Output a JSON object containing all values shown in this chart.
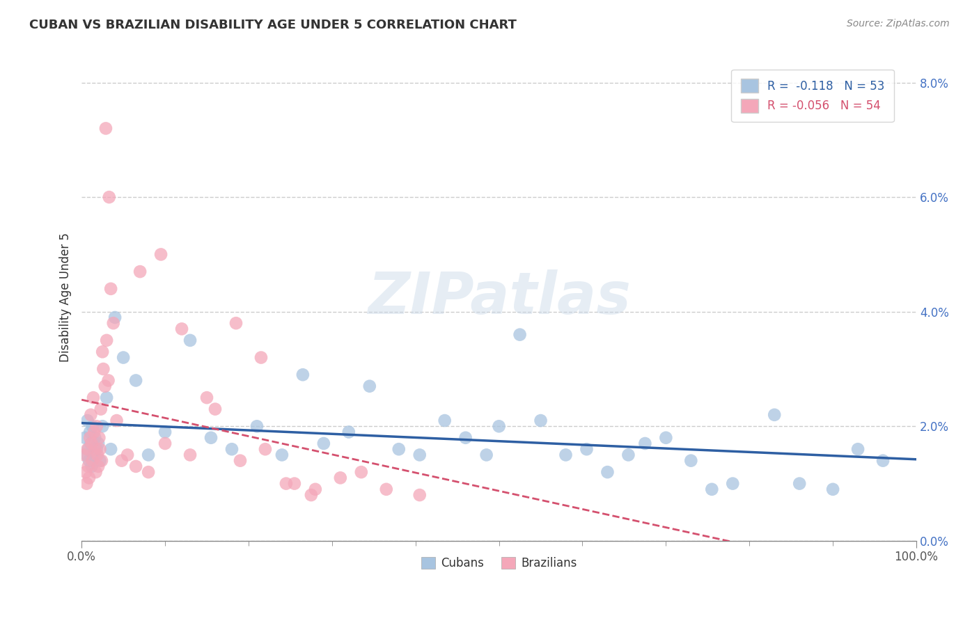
{
  "title": "CUBAN VS BRAZILIAN DISABILITY AGE UNDER 5 CORRELATION CHART",
  "source": "Source: ZipAtlas.com",
  "ylabel": "Disability Age Under 5",
  "xlim": [
    0,
    100
  ],
  "ylim": [
    0,
    8.5
  ],
  "ytick_values": [
    0,
    2,
    4,
    6,
    8
  ],
  "r_cuban": -0.118,
  "n_cuban": 53,
  "r_brazilian": -0.056,
  "n_brazilian": 54,
  "cuban_color": "#a8c4e0",
  "brazilian_color": "#f4a7b9",
  "cuban_line_color": "#2e5fa3",
  "brazilian_line_color": "#d4506e",
  "watermark_text": "ZIPatlas",
  "cubans_x": [
    0.4,
    0.6,
    0.7,
    0.8,
    0.9,
    1.0,
    1.1,
    1.2,
    1.3,
    1.5,
    1.6,
    1.8,
    2.0,
    2.2,
    2.5,
    3.0,
    3.5,
    4.0,
    5.0,
    6.5,
    8.0,
    10.0,
    13.0,
    15.5,
    18.0,
    21.0,
    24.0,
    26.5,
    29.0,
    32.0,
    34.5,
    38.0,
    40.5,
    43.5,
    46.0,
    48.5,
    50.0,
    52.5,
    55.0,
    58.0,
    60.5,
    63.0,
    65.5,
    67.5,
    70.0,
    73.0,
    75.5,
    78.0,
    83.0,
    86.0,
    90.0,
    93.0,
    96.0
  ],
  "cubans_y": [
    1.8,
    1.5,
    2.1,
    1.6,
    1.4,
    1.9,
    1.7,
    1.3,
    2.0,
    1.5,
    1.8,
    1.6,
    1.7,
    1.4,
    2.0,
    2.5,
    1.6,
    3.9,
    3.2,
    2.8,
    1.5,
    1.9,
    3.5,
    1.8,
    1.6,
    2.0,
    1.5,
    2.9,
    1.7,
    1.9,
    2.7,
    1.6,
    1.5,
    2.1,
    1.8,
    1.5,
    2.0,
    3.6,
    2.1,
    1.5,
    1.6,
    1.2,
    1.5,
    1.7,
    1.8,
    1.4,
    0.9,
    1.0,
    2.2,
    1.0,
    0.9,
    1.6,
    1.4
  ],
  "brazilians_x": [
    0.3,
    0.5,
    0.6,
    0.7,
    0.8,
    0.9,
    1.0,
    1.1,
    1.2,
    1.3,
    1.4,
    1.5,
    1.6,
    1.7,
    1.8,
    1.9,
    2.0,
    2.1,
    2.2,
    2.3,
    2.4,
    2.5,
    2.6,
    2.8,
    3.0,
    3.2,
    3.5,
    3.8,
    4.2,
    4.8,
    5.5,
    6.5,
    8.0,
    10.0,
    13.0,
    16.0,
    19.0,
    22.0,
    25.5,
    28.0,
    7.0,
    9.5,
    12.0,
    15.0,
    18.5,
    21.5,
    24.5,
    27.5,
    31.0,
    33.5,
    36.5,
    40.5,
    2.9,
    3.3
  ],
  "brazilians_y": [
    1.5,
    1.2,
    1.0,
    1.6,
    1.3,
    1.1,
    1.8,
    2.2,
    1.7,
    1.4,
    2.5,
    1.9,
    1.6,
    1.2,
    2.0,
    1.5,
    1.3,
    1.8,
    1.6,
    2.3,
    1.4,
    3.3,
    3.0,
    2.7,
    3.5,
    2.8,
    4.4,
    3.8,
    2.1,
    1.4,
    1.5,
    1.3,
    1.2,
    1.7,
    1.5,
    2.3,
    1.4,
    1.6,
    1.0,
    0.9,
    4.7,
    5.0,
    3.7,
    2.5,
    3.8,
    3.2,
    1.0,
    0.8,
    1.1,
    1.2,
    0.9,
    0.8,
    7.2,
    6.0
  ]
}
